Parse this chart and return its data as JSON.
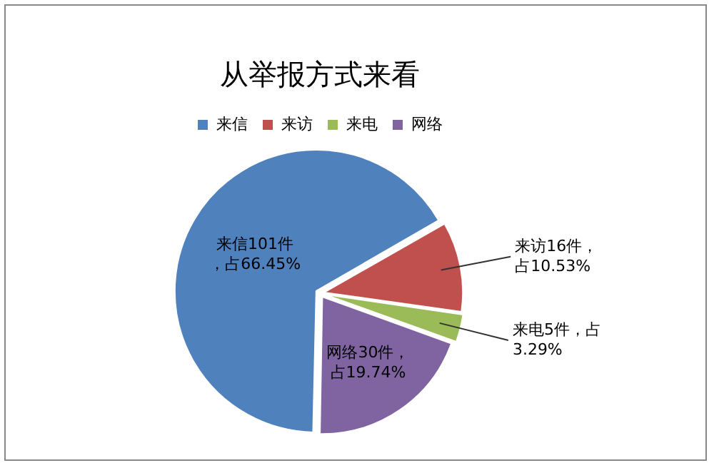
{
  "chart_data": {
    "type": "pie",
    "title": "从举报方式来看",
    "categories": [
      "来信",
      "来访",
      "来电",
      "网络"
    ],
    "values": [
      101,
      16,
      5,
      30
    ],
    "colors": [
      "#4f81bd",
      "#c0504d",
      "#9bbb59",
      "#8064a2"
    ],
    "value_labels": [
      "来信101件，占66.45%",
      "来访16件，占10.53%",
      "来电5件，占3.29%",
      "网络30件，占19.74%"
    ],
    "legend": "top"
  }
}
